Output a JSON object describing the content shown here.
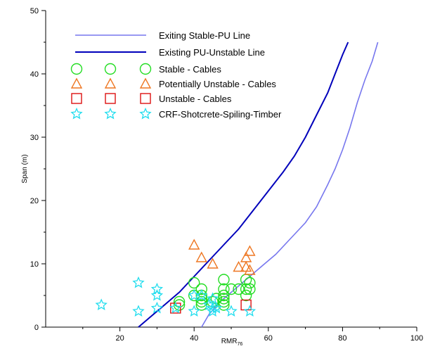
{
  "chart_data": {
    "type": "scatter",
    "title": "",
    "xlabel": "RMR",
    "xlabel_subscript": "76",
    "ylabel": "Span (m)",
    "xlim": [
      0,
      100
    ],
    "ylim": [
      0,
      50
    ],
    "xticks": [
      20,
      40,
      60,
      80,
      100
    ],
    "yticks": [
      0,
      10,
      20,
      30,
      40,
      50
    ],
    "grid": false,
    "legend_position": "top-left",
    "lines": [
      {
        "name": "Exiting Stable-PU Line",
        "color": "#7777ee",
        "points": [
          [
            42,
            0
          ],
          [
            44,
            2
          ],
          [
            47,
            4
          ],
          [
            50,
            5.5
          ],
          [
            54,
            7.5
          ],
          [
            58,
            9.5
          ],
          [
            62,
            11.5
          ],
          [
            66,
            14
          ],
          [
            70,
            16.5
          ],
          [
            73,
            19
          ],
          [
            76,
            22.5
          ],
          [
            78,
            25
          ],
          [
            80,
            28
          ],
          [
            82,
            31.5
          ],
          [
            84,
            35.5
          ],
          [
            86,
            39
          ],
          [
            88,
            42
          ],
          [
            89.5,
            45
          ]
        ]
      },
      {
        "name": "Existing PU-Unstable Line",
        "color": "#0000bb",
        "points": [
          [
            25,
            0
          ],
          [
            28,
            1.5
          ],
          [
            32,
            3.5
          ],
          [
            36,
            5.5
          ],
          [
            40,
            8
          ],
          [
            44,
            10.5
          ],
          [
            48,
            13
          ],
          [
            52,
            15.5
          ],
          [
            56,
            18.5
          ],
          [
            60,
            21.5
          ],
          [
            64,
            24.5
          ],
          [
            67,
            27
          ],
          [
            70,
            30
          ],
          [
            73,
            33.5
          ],
          [
            76,
            37
          ],
          [
            78,
            40
          ],
          [
            80,
            43
          ],
          [
            81.5,
            45
          ]
        ]
      }
    ],
    "series": [
      {
        "name": "Stable - Cables",
        "marker": "circle",
        "color": "#22dd22",
        "points": [
          [
            36,
            4
          ],
          [
            36,
            3.5
          ],
          [
            40,
            7
          ],
          [
            40,
            5
          ],
          [
            42,
            6
          ],
          [
            42,
            5
          ],
          [
            42,
            4.5
          ],
          [
            42,
            4
          ],
          [
            42,
            3.5
          ],
          [
            45,
            4
          ],
          [
            46,
            4.5
          ],
          [
            48,
            7.5
          ],
          [
            48,
            6
          ],
          [
            48,
            5
          ],
          [
            48,
            4.5
          ],
          [
            48,
            4
          ],
          [
            48,
            3.5
          ],
          [
            50,
            6
          ],
          [
            52,
            6
          ],
          [
            54,
            7.5
          ],
          [
            54,
            6
          ],
          [
            54,
            5
          ],
          [
            55,
            7
          ],
          [
            55,
            6
          ]
        ]
      },
      {
        "name": "Potentially Unstable - Cables",
        "marker": "triangle",
        "color": "#ee7722",
        "points": [
          [
            40,
            13
          ],
          [
            42,
            11
          ],
          [
            45,
            10
          ],
          [
            52,
            9.5
          ],
          [
            54,
            9.5
          ],
          [
            54,
            11
          ],
          [
            55,
            12
          ],
          [
            55,
            9
          ]
        ]
      },
      {
        "name": "Unstable - Cables",
        "marker": "square",
        "color": "#dd1111",
        "points": [
          [
            35,
            3
          ],
          [
            54,
            3.5
          ]
        ]
      },
      {
        "name": "CRF-Shotcrete-Spiling-Timber",
        "marker": "star",
        "color": "#22ddee",
        "points": [
          [
            15,
            3.5
          ],
          [
            25,
            7
          ],
          [
            25,
            2.5
          ],
          [
            30,
            6
          ],
          [
            30,
            5
          ],
          [
            30,
            3
          ],
          [
            35,
            3
          ],
          [
            40,
            5
          ],
          [
            40,
            2.5
          ],
          [
            42,
            5
          ],
          [
            44,
            3.5
          ],
          [
            45,
            4.5
          ],
          [
            45,
            3
          ],
          [
            45,
            2.5
          ],
          [
            46,
            3
          ],
          [
            50,
            2.5
          ],
          [
            55,
            2.5
          ]
        ]
      }
    ]
  }
}
